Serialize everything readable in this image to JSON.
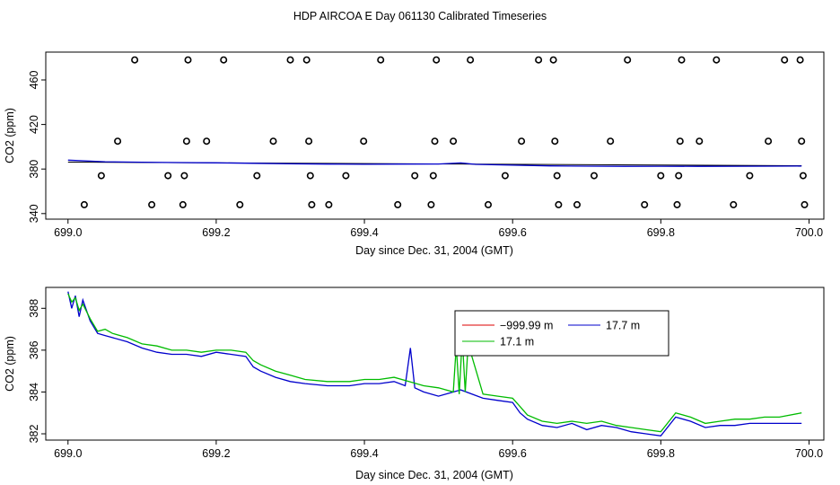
{
  "figure": {
    "title": "HDP AIRCOA E  Day 061130  Calibrated Timeseries"
  },
  "chart_data": [
    {
      "type": "scatter",
      "title": "",
      "xlabel": "Day since Dec. 31, 2004 (GMT)",
      "ylabel": "CO2 (ppm)",
      "xlim": [
        698.97,
        700.02
      ],
      "ylim": [
        335,
        485
      ],
      "xticks": [
        699.0,
        699.2,
        699.4,
        699.6,
        699.8,
        700.0
      ],
      "xtick_labels": [
        "699.0",
        "699.2",
        "699.4",
        "699.6",
        "699.8",
        "700.0"
      ],
      "yticks": [
        340,
        380,
        420,
        460
      ],
      "ytick_labels": [
        "340",
        "380",
        "420",
        "460"
      ],
      "grid": false,
      "colors": {
        "points": "#000000",
        "line": "#0000cc",
        "line2": "#00bb00",
        "ref": "#000000"
      },
      "points": [
        [
          699.022,
          348
        ],
        [
          699.045,
          374
        ],
        [
          699.067,
          405
        ],
        [
          699.09,
          478
        ],
        [
          699.113,
          348
        ],
        [
          699.135,
          374
        ],
        [
          699.155,
          348
        ],
        [
          699.157,
          374
        ],
        [
          699.16,
          405
        ],
        [
          699.162,
          478
        ],
        [
          699.187,
          405
        ],
        [
          699.21,
          478
        ],
        [
          699.232,
          348
        ],
        [
          699.255,
          374
        ],
        [
          699.277,
          405
        ],
        [
          699.3,
          478
        ],
        [
          699.322,
          478
        ],
        [
          699.325,
          405
        ],
        [
          699.327,
          374
        ],
        [
          699.329,
          348
        ],
        [
          699.352,
          348
        ],
        [
          699.375,
          374
        ],
        [
          699.399,
          405
        ],
        [
          699.422,
          478
        ],
        [
          699.445,
          348
        ],
        [
          699.468,
          374
        ],
        [
          699.49,
          348
        ],
        [
          699.493,
          374
        ],
        [
          699.495,
          405
        ],
        [
          699.497,
          478
        ],
        [
          699.52,
          405
        ],
        [
          699.543,
          478
        ],
        [
          699.567,
          348
        ],
        [
          699.59,
          374
        ],
        [
          699.612,
          405
        ],
        [
          699.635,
          478
        ],
        [
          699.655,
          478
        ],
        [
          699.657,
          405
        ],
        [
          699.66,
          374
        ],
        [
          699.662,
          348
        ],
        [
          699.687,
          348
        ],
        [
          699.71,
          374
        ],
        [
          699.732,
          405
        ],
        [
          699.755,
          478
        ],
        [
          699.778,
          348
        ],
        [
          699.8,
          374
        ],
        [
          699.822,
          348
        ],
        [
          699.824,
          374
        ],
        [
          699.826,
          405
        ],
        [
          699.828,
          478
        ],
        [
          699.852,
          405
        ],
        [
          699.875,
          478
        ],
        [
          699.898,
          348
        ],
        [
          699.92,
          374
        ],
        [
          699.945,
          405
        ],
        [
          699.967,
          478
        ],
        [
          699.988,
          478
        ],
        [
          699.99,
          405
        ],
        [
          699.992,
          374
        ],
        [
          699.994,
          348
        ]
      ],
      "series": [
        {
          "name": "",
          "color": "#000000",
          "x": [
            699.0,
            699.99
          ],
          "y": [
            386.2,
            383.0
          ]
        },
        {
          "name": "",
          "color": "#0000cc",
          "x": [
            699.0,
            699.05,
            699.1,
            699.15,
            699.2,
            699.25,
            699.3,
            699.35,
            699.4,
            699.45,
            699.5,
            699.53,
            699.55,
            699.6,
            699.65,
            699.7,
            699.75,
            699.8,
            699.85,
            699.9,
            699.95,
            699.99
          ],
          "y": [
            388.0,
            386.5,
            386.1,
            385.8,
            385.6,
            385.2,
            384.7,
            384.4,
            384.3,
            384.4,
            384.5,
            385.5,
            384.2,
            383.5,
            382.8,
            382.6,
            382.4,
            382.5,
            382.4,
            382.5,
            382.6,
            382.7
          ]
        }
      ]
    },
    {
      "type": "line",
      "title": "",
      "xlabel": "Day since Dec. 31, 2004 (GMT)",
      "ylabel": "CO2 (ppm)",
      "xlim": [
        698.97,
        700.02
      ],
      "ylim": [
        381.7,
        389.0
      ],
      "xticks": [
        699.0,
        699.2,
        699.4,
        699.6,
        699.8,
        700.0
      ],
      "xtick_labels": [
        "699.0",
        "699.2",
        "699.4",
        "699.6",
        "699.8",
        "700.0"
      ],
      "yticks": [
        382,
        384,
        386,
        388
      ],
      "ytick_labels": [
        "382",
        "384",
        "386",
        "388"
      ],
      "grid": false,
      "legend_position": "top-right",
      "legend": [
        {
          "label": "−999.99 m",
          "color": "#dd0000"
        },
        {
          "label": "17.7 m",
          "color": "#0000cc"
        },
        {
          "label": "17.1 m",
          "color": "#00bb00"
        }
      ],
      "series": [
        {
          "name": "17.7 m",
          "color": "#0000cc",
          "x": [
            699.0,
            699.005,
            699.01,
            699.015,
            699.02,
            699.03,
            699.04,
            699.05,
            699.06,
            699.08,
            699.1,
            699.12,
            699.14,
            699.16,
            699.18,
            699.2,
            699.22,
            699.24,
            699.25,
            699.26,
            699.28,
            699.3,
            699.32,
            699.35,
            699.38,
            699.4,
            699.42,
            699.44,
            699.455,
            699.462,
            699.468,
            699.48,
            699.5,
            699.53,
            699.56,
            699.58,
            699.6,
            699.61,
            699.62,
            699.64,
            699.66,
            699.68,
            699.7,
            699.72,
            699.74,
            699.76,
            699.78,
            699.8,
            699.82,
            699.84,
            699.86,
            699.88,
            699.9,
            699.92,
            699.94,
            699.96,
            699.99
          ],
          "y": [
            388.8,
            388.0,
            388.6,
            387.6,
            388.4,
            387.4,
            386.8,
            386.7,
            386.6,
            386.4,
            386.1,
            385.9,
            385.8,
            385.8,
            385.7,
            385.9,
            385.8,
            385.7,
            385.2,
            385.0,
            384.7,
            384.5,
            384.4,
            384.3,
            384.3,
            384.4,
            384.4,
            384.5,
            384.3,
            386.1,
            384.2,
            384.0,
            383.8,
            384.1,
            383.7,
            383.6,
            383.5,
            383.0,
            382.7,
            382.4,
            382.3,
            382.5,
            382.2,
            382.4,
            382.3,
            382.1,
            382.0,
            381.9,
            382.8,
            382.6,
            382.3,
            382.4,
            382.4,
            382.5,
            382.5,
            382.5,
            382.5
          ]
        },
        {
          "name": "17.1 m",
          "color": "#00bb00",
          "x": [
            699.0,
            699.005,
            699.01,
            699.015,
            699.02,
            699.03,
            699.04,
            699.05,
            699.06,
            699.08,
            699.1,
            699.12,
            699.14,
            699.16,
            699.18,
            699.2,
            699.22,
            699.24,
            699.25,
            699.26,
            699.28,
            699.3,
            699.32,
            699.35,
            699.38,
            699.4,
            699.42,
            699.44,
            699.46,
            699.48,
            699.5,
            699.52,
            699.524,
            699.528,
            699.532,
            699.536,
            699.54,
            699.56,
            699.58,
            699.6,
            699.61,
            699.62,
            699.64,
            699.66,
            699.68,
            699.7,
            699.72,
            699.74,
            699.76,
            699.78,
            699.8,
            699.82,
            699.84,
            699.86,
            699.88,
            699.9,
            699.92,
            699.94,
            699.96,
            699.99
          ],
          "y": [
            388.7,
            388.3,
            388.5,
            387.9,
            388.2,
            387.5,
            386.9,
            387.0,
            386.8,
            386.6,
            386.3,
            386.2,
            386.0,
            386.0,
            385.9,
            386.0,
            386.0,
            385.9,
            385.5,
            385.3,
            385.0,
            384.8,
            384.6,
            384.5,
            384.5,
            384.6,
            384.6,
            384.7,
            384.5,
            384.3,
            384.2,
            384.0,
            386.2,
            383.9,
            386.6,
            384.0,
            386.3,
            383.9,
            383.8,
            383.7,
            383.3,
            382.9,
            382.6,
            382.5,
            382.6,
            382.5,
            382.6,
            382.4,
            382.3,
            382.2,
            382.1,
            383.0,
            382.8,
            382.5,
            382.6,
            382.7,
            382.7,
            382.8,
            382.8,
            383.0
          ]
        }
      ]
    }
  ]
}
